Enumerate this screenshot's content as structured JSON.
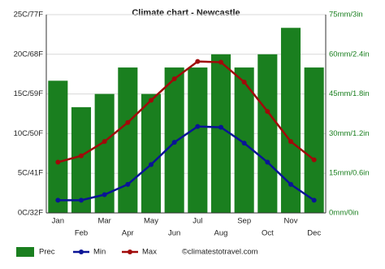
{
  "chart_data": {
    "type": "bar",
    "title": "Climate chart - Newcastle",
    "categories": [
      "Jan",
      "Feb",
      "Mar",
      "Apr",
      "May",
      "Jun",
      "Jul",
      "Aug",
      "Sep",
      "Oct",
      "Nov",
      "Dec"
    ],
    "series": [
      {
        "name": "Prec",
        "type": "bar",
        "axis": "y2",
        "color": "#1a7f1f",
        "values": [
          50,
          40,
          45,
          55,
          45,
          55,
          55,
          60,
          55,
          60,
          70,
          55
        ]
      },
      {
        "name": "Min",
        "type": "line",
        "color": "#0a1496",
        "values": [
          1.6,
          1.6,
          2.3,
          3.6,
          6.1,
          8.9,
          10.9,
          10.8,
          8.8,
          6.4,
          3.6,
          1.6
        ]
      },
      {
        "name": "Max",
        "type": "line",
        "color": "#a00a0a",
        "values": [
          6.4,
          7.2,
          9.0,
          11.4,
          14.2,
          16.9,
          19.1,
          19.0,
          16.5,
          12.8,
          9.0,
          6.7
        ]
      }
    ],
    "ylim": [
      0,
      25
    ],
    "yticks": [
      {
        "value": 0,
        "label": "0C/32F"
      },
      {
        "value": 5,
        "label": "5C/41F"
      },
      {
        "value": 10,
        "label": "10C/50F"
      },
      {
        "value": 15,
        "label": "15C/59F"
      },
      {
        "value": 20,
        "label": "20C/68F"
      },
      {
        "value": 25,
        "label": "25C/77F"
      }
    ],
    "y2lim": [
      0,
      75
    ],
    "y2ticks": [
      {
        "value": 0,
        "label": "0mm/0in"
      },
      {
        "value": 15,
        "label": "15mm/0.6in"
      },
      {
        "value": 30,
        "label": "30mm/1.2in"
      },
      {
        "value": 45,
        "label": "45mm/1.8in"
      },
      {
        "value": 60,
        "label": "60mm/2.4in"
      },
      {
        "value": 75,
        "label": "75mm/3in"
      }
    ],
    "grid": true,
    "credit": "©climatestotravel.com"
  }
}
